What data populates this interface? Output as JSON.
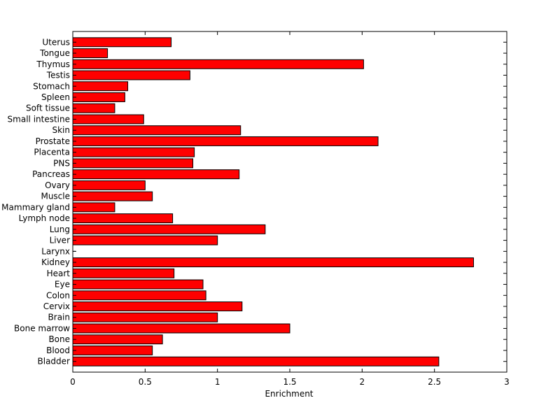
{
  "chart_data": {
    "type": "bar",
    "orientation": "horizontal",
    "title": "",
    "xlabel": "Enrichment",
    "ylabel": "",
    "xlim": [
      0,
      3
    ],
    "xticks": [
      "0",
      "0.5",
      "1",
      "1.5",
      "2",
      "2.5",
      "3"
    ],
    "grid": false,
    "bar_color": "#ff0000",
    "categories": [
      "Uterus",
      "Tongue",
      "Thymus",
      "Testis",
      "Stomach",
      "Spleen",
      "Soft tissue",
      "Small intestine",
      "Skin",
      "Prostate",
      "Placenta",
      "PNS",
      "Pancreas",
      "Ovary",
      "Muscle",
      "Mammary gland",
      "Lymph node",
      "Lung",
      "Liver",
      "Larynx",
      "Kidney",
      "Heart",
      "Eye",
      "Colon",
      "Cervix",
      "Brain",
      "Bone marrow",
      "Bone",
      "Blood",
      "Bladder"
    ],
    "values": [
      0.68,
      0.24,
      2.01,
      0.81,
      0.38,
      0.36,
      0.29,
      0.49,
      1.16,
      2.11,
      0.84,
      0.83,
      1.15,
      0.5,
      0.55,
      0.29,
      0.69,
      1.33,
      1.0,
      0.0,
      2.77,
      0.7,
      0.9,
      0.92,
      1.17,
      1.0,
      1.5,
      0.62,
      0.55,
      2.53
    ]
  }
}
